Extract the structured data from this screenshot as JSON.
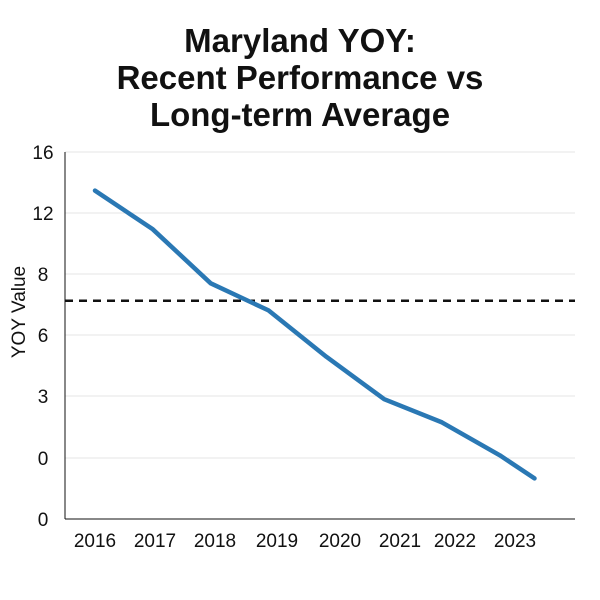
{
  "chart_data": {
    "type": "line",
    "title_lines": [
      "Maryland YOY:",
      "Recent Performance vs",
      "Long-term Average"
    ],
    "xlabel": "",
    "ylabel": "YOY Value",
    "categories": [
      "2016",
      "2017",
      "2018",
      "2019",
      "2020",
      "2021",
      "2022",
      "2023"
    ],
    "y_tick_labels": [
      "16",
      "12",
      "8",
      "6",
      "3",
      "0",
      "0"
    ],
    "series": [
      {
        "x": [
          2016,
          2017,
          2018,
          2019,
          2020,
          2021,
          2022,
          2023,
          2023.6
        ],
        "values": [
          14.0,
          12.0,
          9.2,
          7.8,
          5.4,
          3.2,
          2.0,
          0.3,
          -0.9
        ]
      }
    ],
    "reference_line": {
      "value": 8.3,
      "style": "dashed"
    },
    "ylim": [
      -3,
      16
    ],
    "xlim": [
      2016,
      2024.3
    ],
    "grid": "horizontal",
    "legend": "none",
    "colors": {
      "series": "#2a78b4",
      "reference_line": "#111111",
      "grid": "#e4e4e4",
      "axis": "#111111"
    }
  }
}
